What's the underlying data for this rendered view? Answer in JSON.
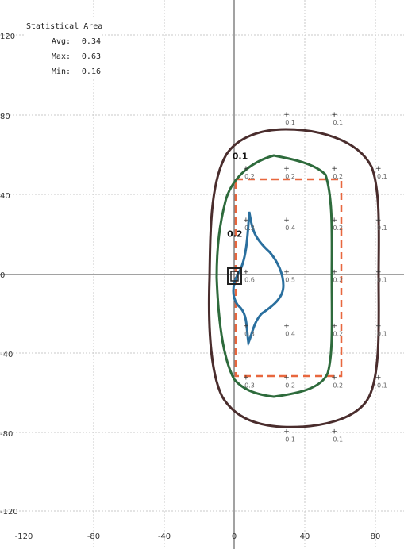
{
  "statistics": {
    "title": "Statistical Area",
    "rows": [
      {
        "label": "Avg:",
        "value": "0.34"
      },
      {
        "label": "Max:",
        "value": "0.63"
      },
      {
        "label": "Min:",
        "value": "0.16"
      }
    ]
  },
  "axes": {
    "x_ticks": [
      "-120",
      "-80",
      "-40",
      "0",
      "40",
      "80"
    ],
    "y_ticks": [
      "120",
      "80",
      "40",
      "0",
      "-40",
      "-80",
      "-120"
    ]
  },
  "contours": [
    {
      "level": "0.1",
      "color": "#4a2d2d"
    },
    {
      "level": "0.2",
      "color": "#2e6b3c"
    },
    {
      "level": "0.4",
      "color": "#2a6f9e"
    }
  ],
  "area_outline_color": "#e8673e",
  "grid_points": [
    {
      "x": 28,
      "y": 78,
      "v": "0.1"
    },
    {
      "x": 55,
      "y": 78,
      "v": "0.1"
    },
    {
      "x": 80,
      "y": 51,
      "v": "0.1"
    },
    {
      "x": 80,
      "y": 25,
      "v": "0.1"
    },
    {
      "x": 80,
      "y": -1,
      "v": "0.1"
    },
    {
      "x": 80,
      "y": -28,
      "v": "0.1"
    },
    {
      "x": 80,
      "y": -54,
      "v": "0.1"
    },
    {
      "x": 28,
      "y": -81,
      "v": "0.1"
    },
    {
      "x": 55,
      "y": -81,
      "v": "0.1"
    },
    {
      "x": 28,
      "y": 51,
      "v": "0.2"
    },
    {
      "x": 55,
      "y": 51,
      "v": "0.2"
    },
    {
      "x": 5,
      "y": 51,
      "v": "0.2"
    },
    {
      "x": 55,
      "y": 25,
      "v": "0.2"
    },
    {
      "x": 55,
      "y": -1,
      "v": "0.2"
    },
    {
      "x": 55,
      "y": -28,
      "v": "0.2"
    },
    {
      "x": 55,
      "y": -54,
      "v": "0.2"
    },
    {
      "x": 28,
      "y": -54,
      "v": "0.2"
    },
    {
      "x": 28,
      "y": 25,
      "v": "0.4"
    },
    {
      "x": 28,
      "y": -28,
      "v": "0.4"
    },
    {
      "x": 28,
      "y": -1,
      "v": "0.5"
    },
    {
      "x": 5,
      "y": 25,
      "v": "0.3"
    },
    {
      "x": 5,
      "y": -28,
      "v": "0.3"
    },
    {
      "x": 5,
      "y": -54,
      "v": "0.3"
    },
    {
      "x": 5,
      "y": -1,
      "v": "0.6"
    }
  ],
  "contour_labels": [
    {
      "x": -1,
      "y": 58,
      "v": "0.1"
    },
    {
      "x": -4,
      "y": 19,
      "v": "0.2"
    }
  ]
}
